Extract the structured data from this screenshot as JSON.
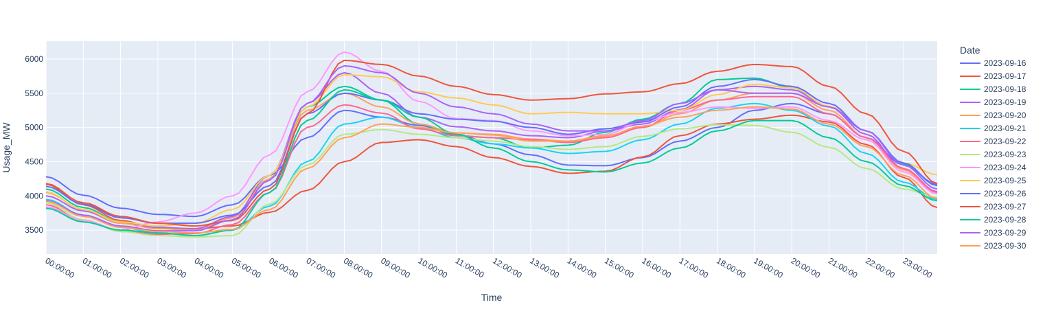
{
  "chart_data": {
    "type": "line",
    "title": "",
    "xlabel": "Time",
    "ylabel": "Usage_MW",
    "legend_title": "Date",
    "legend_position": "right",
    "grid": true,
    "x_ticks": [
      "00:00:00",
      "01:00:00",
      "02:00:00",
      "03:00:00",
      "04:00:00",
      "05:00:00",
      "06:00:00",
      "07:00:00",
      "08:00:00",
      "09:00:00",
      "10:00:00",
      "11:00:00",
      "12:00:00",
      "13:00:00",
      "14:00:00",
      "15:00:00",
      "16:00:00",
      "17:00:00",
      "18:00:00",
      "19:00:00",
      "20:00:00",
      "21:00:00",
      "22:00:00",
      "23:00:00"
    ],
    "xlim_hours": [
      0,
      23.9
    ],
    "y_ticks": [
      3500,
      4000,
      4500,
      5000,
      5500,
      6000
    ],
    "ylim": [
      3150,
      6260
    ],
    "x_hours": [
      0,
      1,
      2,
      3,
      4,
      5,
      6,
      7,
      8,
      9,
      10,
      11,
      12,
      13,
      14,
      15,
      16,
      17,
      18,
      19,
      20,
      21,
      22,
      23,
      23.9
    ],
    "series": [
      {
        "name": "2023-09-16",
        "color": "#636efa",
        "values": [
          4280,
          4010,
          3820,
          3730,
          3700,
          3870,
          4300,
          4850,
          5250,
          5150,
          5030,
          4900,
          4760,
          4600,
          4450,
          4440,
          4560,
          4800,
          5000,
          5250,
          5350,
          5200,
          4850,
          4450,
          4170
        ]
      },
      {
        "name": "2023-09-17",
        "color": "#ef553b",
        "values": [
          4170,
          3870,
          3640,
          3530,
          3520,
          3560,
          3760,
          4080,
          4500,
          4780,
          4820,
          4720,
          4560,
          4430,
          4330,
          4360,
          4570,
          4880,
          5050,
          5120,
          5180,
          5080,
          4750,
          4270,
          3830
        ]
      },
      {
        "name": "2023-09-18",
        "color": "#00cc96",
        "values": [
          4100,
          3830,
          3620,
          3540,
          3500,
          3700,
          4250,
          5300,
          5600,
          5400,
          5050,
          4880,
          4850,
          4700,
          4740,
          4930,
          5120,
          5350,
          5700,
          5720,
          5580,
          5300,
          4950,
          4470,
          4150
        ]
      },
      {
        "name": "2023-09-19",
        "color": "#ab63fa",
        "values": [
          4000,
          3780,
          3600,
          3540,
          3520,
          3700,
          4300,
          5350,
          5800,
          5500,
          5150,
          5010,
          4950,
          4880,
          4850,
          4950,
          5050,
          5260,
          5550,
          5600,
          5550,
          5300,
          4900,
          4400,
          4060
        ]
      },
      {
        "name": "2023-09-20",
        "color": "#ffa15a",
        "values": [
          4050,
          3800,
          3600,
          3520,
          3500,
          3680,
          4250,
          5250,
          5500,
          5300,
          5050,
          4920,
          4900,
          4830,
          4800,
          4880,
          5000,
          5200,
          5400,
          5500,
          5500,
          5250,
          4850,
          4380,
          4030
        ]
      },
      {
        "name": "2023-09-21",
        "color": "#19d3f3",
        "values": [
          3950,
          3720,
          3540,
          3460,
          3420,
          3500,
          3850,
          4500,
          5050,
          5150,
          5000,
          4850,
          4760,
          4700,
          4620,
          4650,
          4820,
          5050,
          5280,
          5350,
          5250,
          5020,
          4620,
          4200,
          3950
        ]
      },
      {
        "name": "2023-09-22",
        "color": "#ff6692",
        "values": [
          3870,
          3650,
          3480,
          3440,
          3450,
          3580,
          4050,
          5000,
          5330,
          5210,
          4980,
          4880,
          4850,
          4820,
          4780,
          4850,
          5000,
          5250,
          5400,
          5450,
          5450,
          5200,
          4850,
          4400,
          4050
        ]
      },
      {
        "name": "2023-09-23",
        "color": "#b6e880",
        "values": [
          3900,
          3650,
          3480,
          3420,
          3400,
          3420,
          3880,
          4450,
          4900,
          4970,
          4900,
          4850,
          4800,
          4720,
          4680,
          4720,
          4870,
          4980,
          5040,
          5030,
          4930,
          4710,
          4400,
          4100,
          3980
        ]
      },
      {
        "name": "2023-09-24",
        "color": "#ff97ff",
        "values": [
          3840,
          3640,
          3500,
          3620,
          3750,
          4000,
          4600,
          5520,
          6100,
          5820,
          5380,
          5130,
          5100,
          4950,
          4880,
          4900,
          5080,
          5220,
          5300,
          5280,
          5300,
          5100,
          4820,
          4350,
          4030
        ]
      },
      {
        "name": "2023-09-25",
        "color": "#fecb52",
        "values": [
          4060,
          3800,
          3620,
          3560,
          3600,
          3800,
          4300,
          5300,
          5770,
          5740,
          5520,
          5430,
          5330,
          5200,
          5220,
          5200,
          5200,
          5250,
          5480,
          5630,
          5580,
          5310,
          4950,
          4480,
          4310
        ]
      },
      {
        "name": "2023-09-26",
        "color": "#636efa",
        "values": [
          4140,
          3880,
          3680,
          3600,
          3600,
          3720,
          4150,
          5200,
          5500,
          5400,
          5200,
          5120,
          5090,
          5000,
          4900,
          4980,
          5080,
          5300,
          5600,
          5700,
          5600,
          5350,
          4950,
          4480,
          4150
        ]
      },
      {
        "name": "2023-09-27",
        "color": "#ef553b",
        "values": [
          4180,
          3900,
          3700,
          3600,
          3560,
          3640,
          4100,
          5200,
          5980,
          5920,
          5750,
          5600,
          5480,
          5400,
          5420,
          5490,
          5520,
          5640,
          5820,
          5920,
          5890,
          5600,
          5200,
          4650,
          4180
        ]
      },
      {
        "name": "2023-09-28",
        "color": "#00cc96",
        "values": [
          3820,
          3620,
          3500,
          3460,
          3420,
          3500,
          4050,
          5100,
          5550,
          5400,
          5150,
          4900,
          4700,
          4500,
          4380,
          4350,
          4480,
          4700,
          4950,
          5100,
          5100,
          4850,
          4500,
          4150,
          3930
        ]
      },
      {
        "name": "2023-09-29",
        "color": "#ab63fa",
        "values": [
          3930,
          3720,
          3560,
          3490,
          3490,
          3650,
          4230,
          5350,
          5900,
          5800,
          5500,
          5300,
          5200,
          5050,
          4950,
          4950,
          5100,
          5350,
          5550,
          5500,
          5500,
          5300,
          4950,
          4450,
          4100
        ]
      },
      {
        "name": "2023-09-30",
        "color": "#ffa15a",
        "values": [
          3920,
          3700,
          3540,
          3480,
          3460,
          3510,
          3800,
          4400,
          4850,
          5050,
          5000,
          4920,
          4890,
          4800,
          4800,
          4870,
          5020,
          5150,
          5250,
          5300,
          5270,
          5050,
          4720,
          4300,
          3960
        ]
      }
    ]
  }
}
